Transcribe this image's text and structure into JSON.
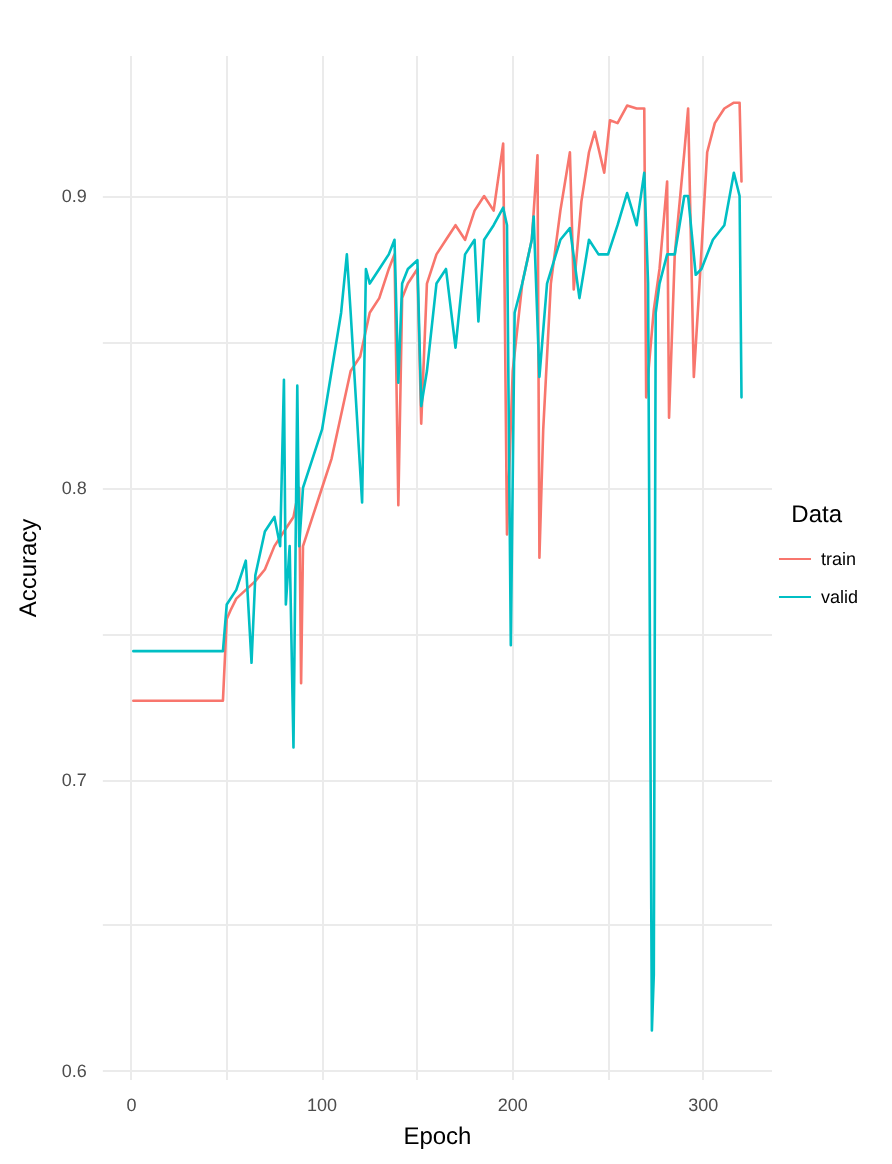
{
  "chart_data": {
    "type": "line",
    "xlabel": "Epoch",
    "ylabel": "Accuracy",
    "legend_title": "Data",
    "legend": "right",
    "grid": true,
    "marker": "none",
    "line_style": "solid",
    "xlim": [
      -15,
      336
    ],
    "xticks": [
      0,
      {
        "value": 50,
        "label": null
      },
      100,
      {
        "value": 150,
        "label": null
      },
      200,
      {
        "value": 250,
        "label": null
      },
      300
    ],
    "ylim": [
      0.597,
      0.948
    ],
    "yticks": [
      0.6,
      {
        "value": 0.65,
        "label": null
      },
      0.7,
      {
        "value": 0.75,
        "label": null
      },
      0.8,
      {
        "value": 0.85,
        "label": null
      },
      0.9
    ],
    "series": [
      {
        "name": "train",
        "color": "#f8766d",
        "x": [
          1,
          48,
          50,
          52,
          55,
          60,
          65,
          70,
          75,
          80,
          85,
          88,
          89,
          90,
          95,
          100,
          105,
          110,
          115,
          120,
          125,
          130,
          135,
          138,
          140,
          142,
          145,
          150,
          152,
          155,
          160,
          165,
          170,
          175,
          180,
          185,
          190,
          195,
          197,
          200,
          205,
          210,
          213,
          214,
          216,
          220,
          225,
          230,
          232,
          236,
          240,
          243,
          248,
          251,
          255,
          260,
          265,
          269,
          270,
          274,
          277,
          281,
          282,
          285,
          290,
          292,
          295,
          298,
          302,
          306,
          311,
          316,
          319,
          320
        ],
        "values": [
          0.727,
          0.727,
          0.755,
          0.758,
          0.762,
          0.765,
          0.768,
          0.772,
          0.78,
          0.785,
          0.79,
          0.8,
          0.733,
          0.78,
          0.79,
          0.8,
          0.81,
          0.825,
          0.84,
          0.845,
          0.86,
          0.865,
          0.875,
          0.88,
          0.794,
          0.865,
          0.87,
          0.875,
          0.822,
          0.87,
          0.88,
          0.885,
          0.89,
          0.885,
          0.895,
          0.9,
          0.895,
          0.918,
          0.784,
          0.84,
          0.87,
          0.885,
          0.914,
          0.776,
          0.82,
          0.87,
          0.895,
          0.915,
          0.868,
          0.898,
          0.915,
          0.922,
          0.908,
          0.926,
          0.925,
          0.931,
          0.93,
          0.93,
          0.831,
          0.861,
          0.875,
          0.905,
          0.824,
          0.88,
          0.915,
          0.93,
          0.838,
          0.87,
          0.915,
          0.925,
          0.93,
          0.932,
          0.932,
          0.905
        ]
      },
      {
        "name": "valid",
        "color": "#00bfc4",
        "x": [
          1,
          48,
          50,
          55,
          60,
          63,
          65,
          70,
          75,
          78,
          80,
          81,
          83,
          85,
          87,
          88,
          90,
          95,
          100,
          105,
          110,
          113,
          115,
          121,
          123,
          125,
          130,
          135,
          138,
          140,
          142,
          145,
          150,
          152,
          155,
          160,
          165,
          170,
          175,
          180,
          182,
          185,
          190,
          195,
          197,
          199,
          201,
          205,
          210,
          211,
          214,
          218,
          225,
          230,
          235,
          240,
          245,
          250,
          255,
          260,
          265,
          269,
          271,
          273,
          274,
          275,
          277,
          281,
          285,
          290,
          292,
          296,
          299,
          305,
          311,
          316,
          319,
          320
        ],
        "values": [
          0.744,
          0.744,
          0.76,
          0.765,
          0.775,
          0.74,
          0.77,
          0.785,
          0.79,
          0.78,
          0.837,
          0.76,
          0.78,
          0.711,
          0.835,
          0.78,
          0.8,
          0.81,
          0.82,
          0.84,
          0.86,
          0.88,
          0.86,
          0.795,
          0.875,
          0.87,
          0.875,
          0.88,
          0.885,
          0.836,
          0.87,
          0.875,
          0.878,
          0.828,
          0.84,
          0.87,
          0.875,
          0.848,
          0.88,
          0.885,
          0.857,
          0.885,
          0.89,
          0.896,
          0.89,
          0.746,
          0.86,
          0.87,
          0.885,
          0.893,
          0.838,
          0.87,
          0.885,
          0.889,
          0.865,
          0.885,
          0.88,
          0.88,
          0.89,
          0.901,
          0.89,
          0.908,
          0.87,
          0.614,
          0.633,
          0.86,
          0.87,
          0.88,
          0.88,
          0.9,
          0.9,
          0.873,
          0.875,
          0.885,
          0.89,
          0.908,
          0.9,
          0.831
        ]
      }
    ]
  }
}
